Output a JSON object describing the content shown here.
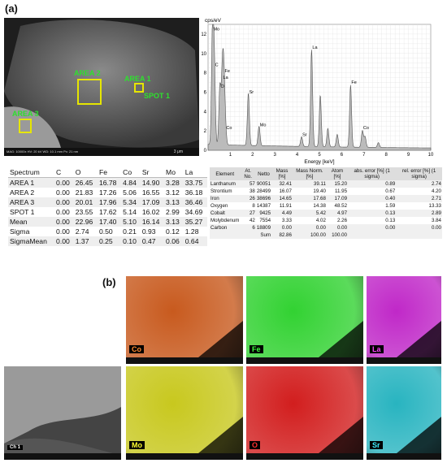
{
  "panel_a_label": "(a)",
  "panel_b_label": "(b)",
  "sem": {
    "areas": [
      {
        "label": "AREA 2"
      },
      {
        "label": "AREA 1"
      },
      {
        "label": "SPOT 1"
      },
      {
        "label": "AREA 3"
      }
    ],
    "databar": "MAG: 10000x  HV: 20 kV  WD: 10.1 mm  Px: 21 nm",
    "scale": "3 μm"
  },
  "chart_data": {
    "type": "line",
    "ylabel": "cps/eV",
    "xlabel": "Energy [keV]",
    "xlim": [
      0,
      10
    ],
    "ylim": [
      0,
      13
    ],
    "xticks": [
      1,
      2,
      3,
      4,
      5,
      6,
      7,
      8,
      9,
      10
    ],
    "yticks": [
      0,
      2,
      4,
      6,
      8,
      10,
      12
    ],
    "grid": true,
    "background_level": 0.5,
    "peaks": [
      {
        "label": "Mo",
        "x": 0.2,
        "y": 12.2
      },
      {
        "label": "C",
        "x": 0.28,
        "y": 8.5
      },
      {
        "label": "O",
        "x": 0.53,
        "y": 6.3
      },
      {
        "label": "La",
        "x": 0.64,
        "y": 7.2
      },
      {
        "label": "Fe",
        "x": 0.71,
        "y": 6.7
      },
      {
        "label": "Co",
        "x": 0.78,
        "y": 2.0
      },
      {
        "label": "Sr",
        "x": 1.81,
        "y": 5.7
      },
      {
        "label": "Mo",
        "x": 2.29,
        "y": 2.3
      },
      {
        "label": "Sr",
        "x": 4.2,
        "y": 1.3
      },
      {
        "label": "La",
        "x": 4.65,
        "y": 10.3
      },
      {
        "label": "",
        "x": 5.04,
        "y": 5.6
      },
      {
        "label": "",
        "x": 5.38,
        "y": 2.2
      },
      {
        "label": "",
        "x": 5.8,
        "y": 1.6
      },
      {
        "label": "Fe",
        "x": 6.4,
        "y": 6.7
      },
      {
        "label": "Co",
        "x": 6.93,
        "y": 2.0
      },
      {
        "label": "",
        "x": 7.05,
        "y": 1.4
      },
      {
        "label": "",
        "x": 7.65,
        "y": 0.8
      }
    ]
  },
  "table1": {
    "headers": [
      "Spectrum",
      "C",
      "O",
      "Fe",
      "Co",
      "Sr",
      "Mo",
      "La"
    ],
    "rows": [
      [
        "AREA 1",
        "0.00",
        "26.45",
        "16.78",
        "4.84",
        "14.90",
        "3.28",
        "33.75"
      ],
      [
        "AREA 2",
        "0.00",
        "21.83",
        "17.26",
        "5.06",
        "16.55",
        "3.12",
        "36.18"
      ],
      [
        "AREA 3",
        "0.00",
        "20.01",
        "17.96",
        "5.34",
        "17.09",
        "3.13",
        "36.46"
      ],
      [
        "SPOT 1",
        "0.00",
        "23.55",
        "17.62",
        "5.14",
        "16.02",
        "2.99",
        "34.69"
      ],
      [
        "Mean",
        "0.00",
        "22.96",
        "17.40",
        "5.10",
        "16.14",
        "3.13",
        "35.27"
      ],
      [
        "Sigma",
        "0.00",
        "2.74",
        "0.50",
        "0.21",
        "0.93",
        "0.12",
        "1.28"
      ],
      [
        "SigmaMean",
        "0.00",
        "1.37",
        "0.25",
        "0.10",
        "0.47",
        "0.06",
        "0.64"
      ]
    ]
  },
  "table2": {
    "headers": [
      "Element",
      "At. No.",
      "Netto",
      "Mass [%]",
      "Mass Norm. [%]",
      "Atom [%]",
      "abs. error [%] (1 sigma)",
      "rel. error [%] (1 sigma)"
    ],
    "rows": [
      [
        "Lanthanum",
        "57",
        "90051",
        "32.41",
        "39.11",
        "15.20",
        "0.89",
        "2.74"
      ],
      [
        "Strontium",
        "38",
        "28499",
        "16.07",
        "19.40",
        "11.95",
        "0.67",
        "4.20"
      ],
      [
        "Iron",
        "26",
        "38696",
        "14.65",
        "17.68",
        "17.09",
        "0.40",
        "2.71"
      ],
      [
        "Oxygen",
        "8",
        "14387",
        "11.91",
        "14.38",
        "48.52",
        "1.59",
        "13.33"
      ],
      [
        "Cobalt",
        "27",
        "9425",
        "4.49",
        "5.42",
        "4.97",
        "0.13",
        "2.89"
      ],
      [
        "Molybdenum",
        "42",
        "7554",
        "3.33",
        "4.02",
        "2.26",
        "0.13",
        "3.84"
      ],
      [
        "Carbon",
        "6",
        "18809",
        "0.00",
        "0.00",
        "0.00",
        "0.00",
        "0.00"
      ]
    ],
    "sum_label": "Sum",
    "sum_mass": "82.86",
    "sum_norm": "100.00",
    "sum_atom": "100.00"
  },
  "maps": [
    {
      "element": "Co",
      "color": "#c85a1e",
      "tag_color": "#ff8a30"
    },
    {
      "element": "Fe",
      "color": "#32d232",
      "tag_color": "#3cff3c"
    },
    {
      "element": "La",
      "color": "#c028c8",
      "tag_color": "#ff40ff"
    },
    {
      "element": "Mo",
      "color": "#c8c81e",
      "tag_color": "#ffff30"
    },
    {
      "element": "O",
      "color": "#d21e1e",
      "tag_color": "#ff3030"
    },
    {
      "element": "Sr",
      "color": "#28b4c0",
      "tag_color": "#40f0ff"
    }
  ],
  "sem_map_label": "Ch 1"
}
